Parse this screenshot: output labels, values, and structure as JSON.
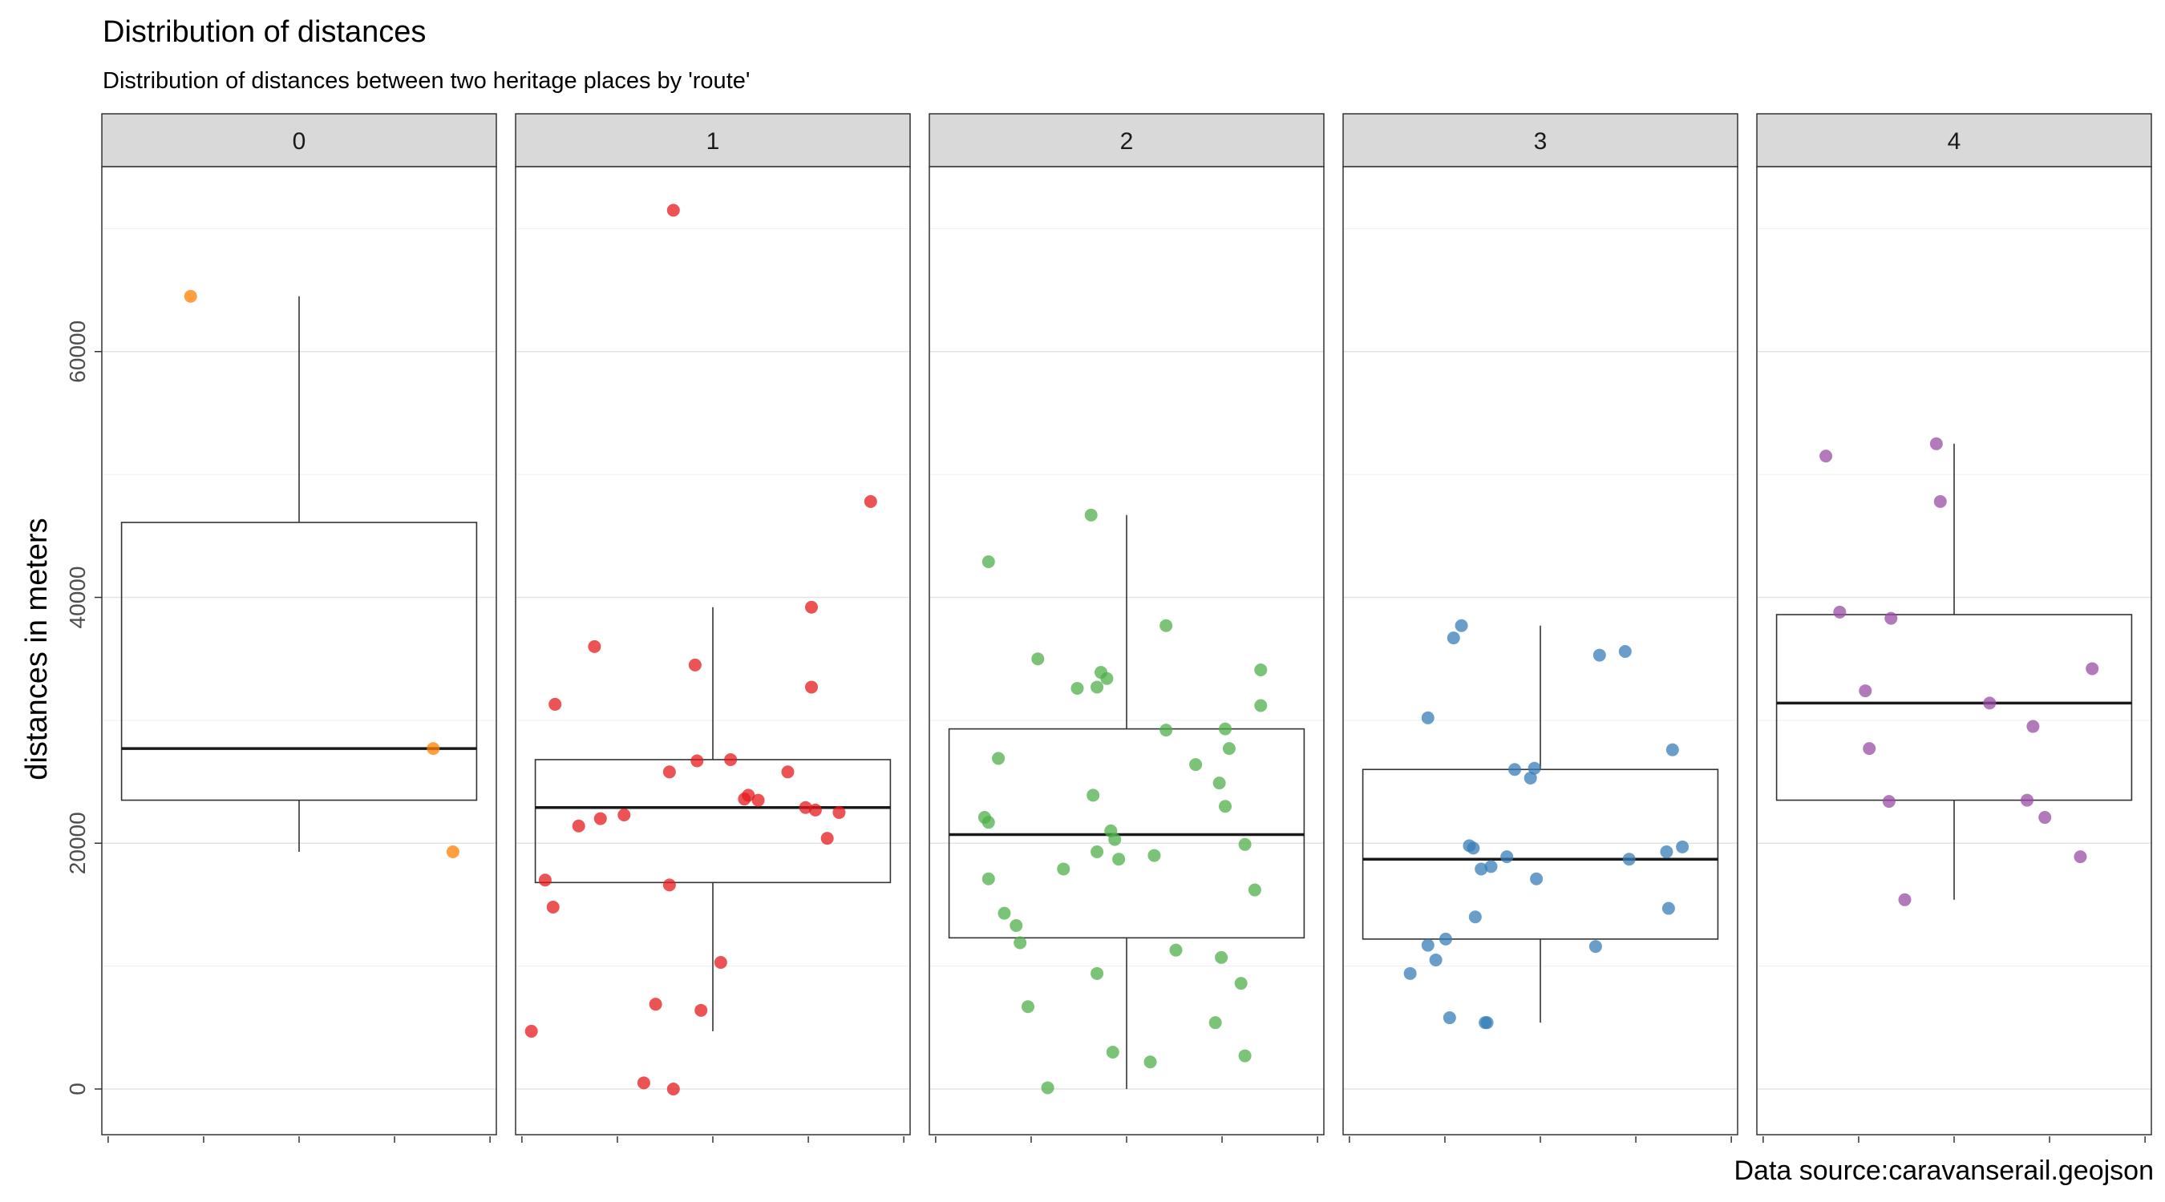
{
  "title": "Distribution of distances",
  "subtitle": "Distribution of distances between two heritage places by 'route'",
  "caption": "Data source:caravanserail.geojson",
  "ylabel": "distances in meters",
  "chart_data": {
    "type": "box",
    "facet_by": "route",
    "ylabel": "distances in meters",
    "ylim": [
      -3500,
      75000
    ],
    "yticks": [
      0,
      20000,
      40000,
      60000
    ],
    "grid": true,
    "legend": "none",
    "panels": [
      {
        "label": "0",
        "color": "#FF7F00",
        "box": {
          "lower_whisker": 19300,
          "q1": 23500,
          "median": 27700,
          "q3": 46100,
          "upper_whisker": 64500
        },
        "points": [
          [
            -0.55,
            64500
          ],
          [
            0.68,
            27700
          ],
          [
            0.78,
            19300
          ]
        ]
      },
      {
        "label": "1",
        "color": "#E41A1C",
        "box": {
          "lower_whisker": 4700,
          "q1": 16800,
          "median": 22900,
          "q3": 26800,
          "upper_whisker": 39200
        },
        "points": [
          [
            -0.2,
            71500
          ],
          [
            0.8,
            47800
          ],
          [
            0.5,
            39200
          ],
          [
            -0.6,
            36000
          ],
          [
            -0.09,
            34500
          ],
          [
            0.5,
            32700
          ],
          [
            -0.8,
            31300
          ],
          [
            0.09,
            26800
          ],
          [
            -0.08,
            26700
          ],
          [
            -0.22,
            25800
          ],
          [
            0.38,
            25800
          ],
          [
            0.18,
            23900
          ],
          [
            0.23,
            23500
          ],
          [
            0.16,
            23600
          ],
          [
            0.47,
            22900
          ],
          [
            0.52,
            22700
          ],
          [
            0.64,
            22500
          ],
          [
            -0.45,
            22300
          ],
          [
            -0.57,
            22000
          ],
          [
            -0.68,
            21400
          ],
          [
            0.58,
            20400
          ],
          [
            -0.85,
            17000
          ],
          [
            -0.22,
            16600
          ],
          [
            -0.81,
            14800
          ],
          [
            0.04,
            10300
          ],
          [
            -0.29,
            6900
          ],
          [
            -0.06,
            6400
          ],
          [
            -0.92,
            4700
          ],
          [
            -0.35,
            500
          ],
          [
            -0.2,
            0
          ]
        ]
      },
      {
        "label": "2",
        "color": "#4DAF4A",
        "box": {
          "lower_whisker": 0,
          "q1": 12300,
          "median": 20700,
          "q3": 29300,
          "upper_whisker": 46700
        },
        "points": [
          [
            -0.18,
            46700
          ],
          [
            -0.7,
            42900
          ],
          [
            0.2,
            37700
          ],
          [
            -0.45,
            35000
          ],
          [
            0.68,
            34100
          ],
          [
            -0.13,
            33900
          ],
          [
            -0.1,
            33400
          ],
          [
            -0.25,
            32600
          ],
          [
            -0.15,
            32700
          ],
          [
            0.68,
            31200
          ],
          [
            0.2,
            29200
          ],
          [
            0.5,
            29300
          ],
          [
            0.52,
            27700
          ],
          [
            -0.65,
            26900
          ],
          [
            0.35,
            26400
          ],
          [
            0.47,
            24900
          ],
          [
            -0.17,
            23900
          ],
          [
            0.5,
            23000
          ],
          [
            -0.72,
            22100
          ],
          [
            -0.7,
            21700
          ],
          [
            -0.08,
            21000
          ],
          [
            -0.06,
            20300
          ],
          [
            0.6,
            19900
          ],
          [
            -0.15,
            19300
          ],
          [
            0.14,
            19000
          ],
          [
            -0.04,
            18700
          ],
          [
            -0.32,
            17900
          ],
          [
            -0.7,
            17100
          ],
          [
            0.65,
            16200
          ],
          [
            -0.62,
            14300
          ],
          [
            -0.56,
            13300
          ],
          [
            -0.54,
            11900
          ],
          [
            0.25,
            11300
          ],
          [
            0.48,
            10700
          ],
          [
            -0.15,
            9400
          ],
          [
            0.58,
            8600
          ],
          [
            -0.5,
            6700
          ],
          [
            0.45,
            5400
          ],
          [
            -0.07,
            3000
          ],
          [
            0.12,
            2200
          ],
          [
            0.6,
            2700
          ],
          [
            -0.4,
            100
          ]
        ]
      },
      {
        "label": "3",
        "color": "#377EB8",
        "box": {
          "lower_whisker": 5400,
          "q1": 12200,
          "median": 18700,
          "q3": 26000,
          "upper_whisker": 37700
        },
        "points": [
          [
            -0.4,
            37700
          ],
          [
            -0.44,
            36700
          ],
          [
            0.3,
            35300
          ],
          [
            0.43,
            35600
          ],
          [
            -0.57,
            30200
          ],
          [
            0.67,
            27600
          ],
          [
            -0.13,
            26000
          ],
          [
            -0.03,
            26100
          ],
          [
            -0.05,
            25300
          ],
          [
            -0.36,
            19800
          ],
          [
            -0.34,
            19600
          ],
          [
            0.72,
            19700
          ],
          [
            0.64,
            19300
          ],
          [
            -0.17,
            18900
          ],
          [
            0.45,
            18700
          ],
          [
            -0.25,
            18100
          ],
          [
            -0.3,
            17900
          ],
          [
            -0.02,
            17100
          ],
          [
            0.65,
            14700
          ],
          [
            -0.33,
            14000
          ],
          [
            -0.48,
            12200
          ],
          [
            -0.57,
            11700
          ],
          [
            0.28,
            11600
          ],
          [
            -0.53,
            10500
          ],
          [
            -0.66,
            9400
          ],
          [
            -0.46,
            5800
          ],
          [
            -0.27,
            5400
          ],
          [
            -0.28,
            5400
          ]
        ]
      },
      {
        "label": "4",
        "color": "#984EA3",
        "box": {
          "lower_whisker": 15400,
          "q1": 23500,
          "median": 31400,
          "q3": 38600,
          "upper_whisker": 52500
        },
        "points": [
          [
            -0.65,
            51500
          ],
          [
            -0.09,
            52500
          ],
          [
            -0.07,
            47800
          ],
          [
            -0.58,
            38800
          ],
          [
            -0.32,
            38300
          ],
          [
            0.7,
            34200
          ],
          [
            -0.45,
            32400
          ],
          [
            0.18,
            31400
          ],
          [
            0.4,
            29500
          ],
          [
            -0.43,
            27700
          ],
          [
            -0.33,
            23400
          ],
          [
            0.37,
            23500
          ],
          [
            0.46,
            22100
          ],
          [
            0.64,
            18900
          ],
          [
            -0.25,
            15400
          ]
        ]
      }
    ]
  }
}
